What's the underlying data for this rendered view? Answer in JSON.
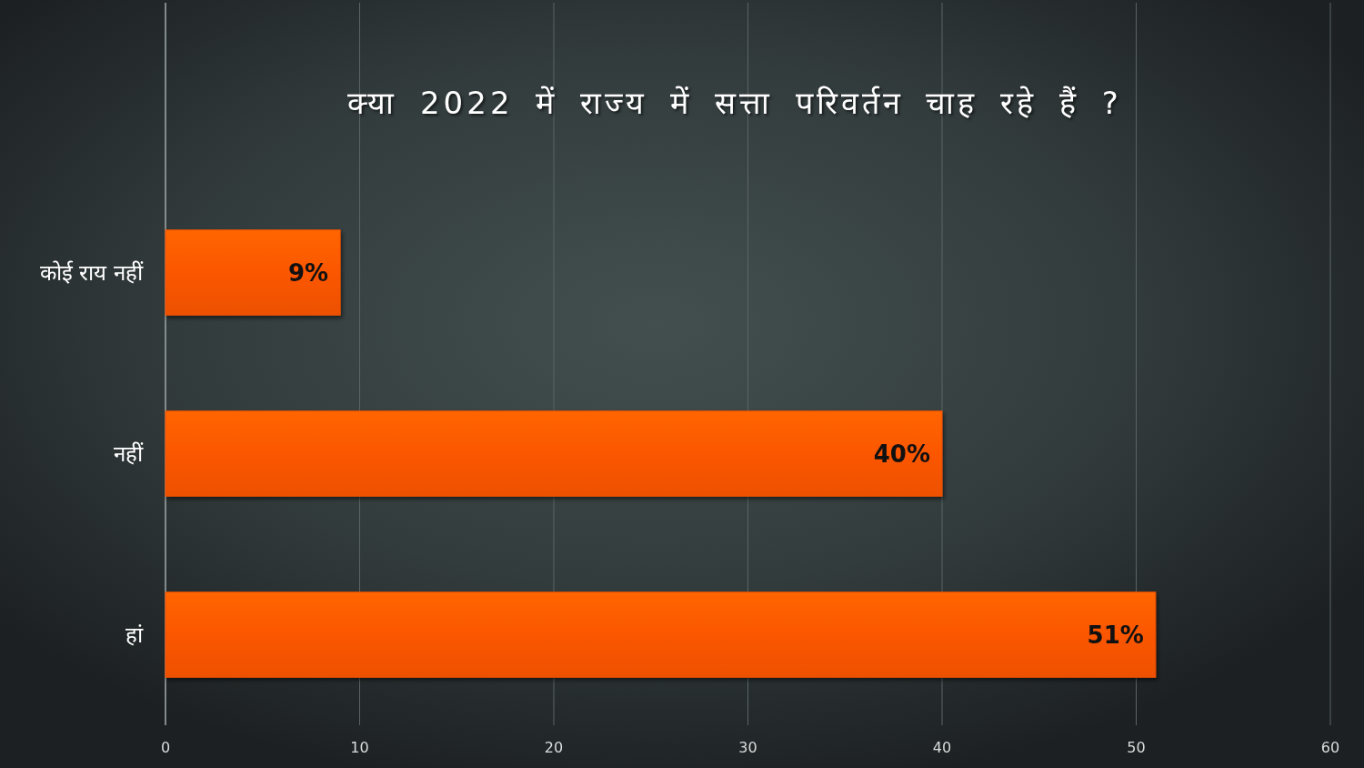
{
  "chart_data": {
    "type": "bar",
    "orientation": "horizontal",
    "title": "क्या 2022 में राज्य में सत्ता परिवर्तन चाह रहे हैं ?",
    "categories": [
      "कोई राय नहीं",
      "नहीं",
      "हां"
    ],
    "values": [
      9,
      40,
      51
    ],
    "color": "#fa5500",
    "value_labels": [
      "9%",
      "40%",
      "51%"
    ],
    "xlim": [
      0,
      60
    ],
    "xticks": [
      0,
      10,
      20,
      30,
      40,
      50,
      60
    ],
    "grid": "x"
  }
}
